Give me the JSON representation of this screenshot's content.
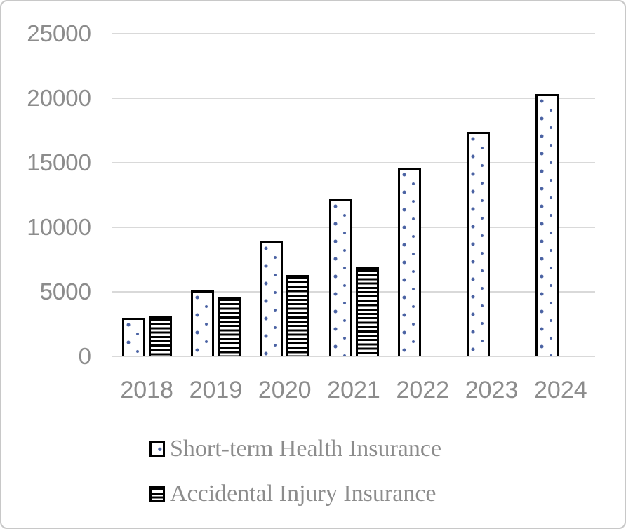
{
  "chart_data": {
    "type": "bar",
    "title": "",
    "xlabel": "",
    "ylabel": "",
    "categories": [
      "2018",
      "2019",
      "2020",
      "2021",
      "2022",
      "2023",
      "2024"
    ],
    "series": [
      {
        "name": "Short-term Health Insurance",
        "pattern": "dots",
        "values": [
          3000,
          5100,
          8900,
          12200,
          14600,
          17400,
          20300
        ]
      },
      {
        "name": "Accidental Injury Insurance",
        "pattern": "hlines",
        "values": [
          3100,
          4600,
          6300,
          6900,
          null,
          null,
          null
        ]
      }
    ],
    "ylim": [
      0,
      25000
    ],
    "ytick_step": 5000,
    "yticks": [
      "25000",
      "20000",
      "15000",
      "10000",
      "5000",
      "0"
    ],
    "grid": true,
    "legend_position": "bottom-left"
  },
  "colors": {
    "bar_border": "#000000",
    "pattern_dot_blue": "#4a62a3",
    "gridline": "#d9d9d9",
    "axis_text": "#8c8c8c",
    "legend_text": "#8c8c8c",
    "frame_border": "#c8c8c8",
    "background": "#ffffff"
  }
}
